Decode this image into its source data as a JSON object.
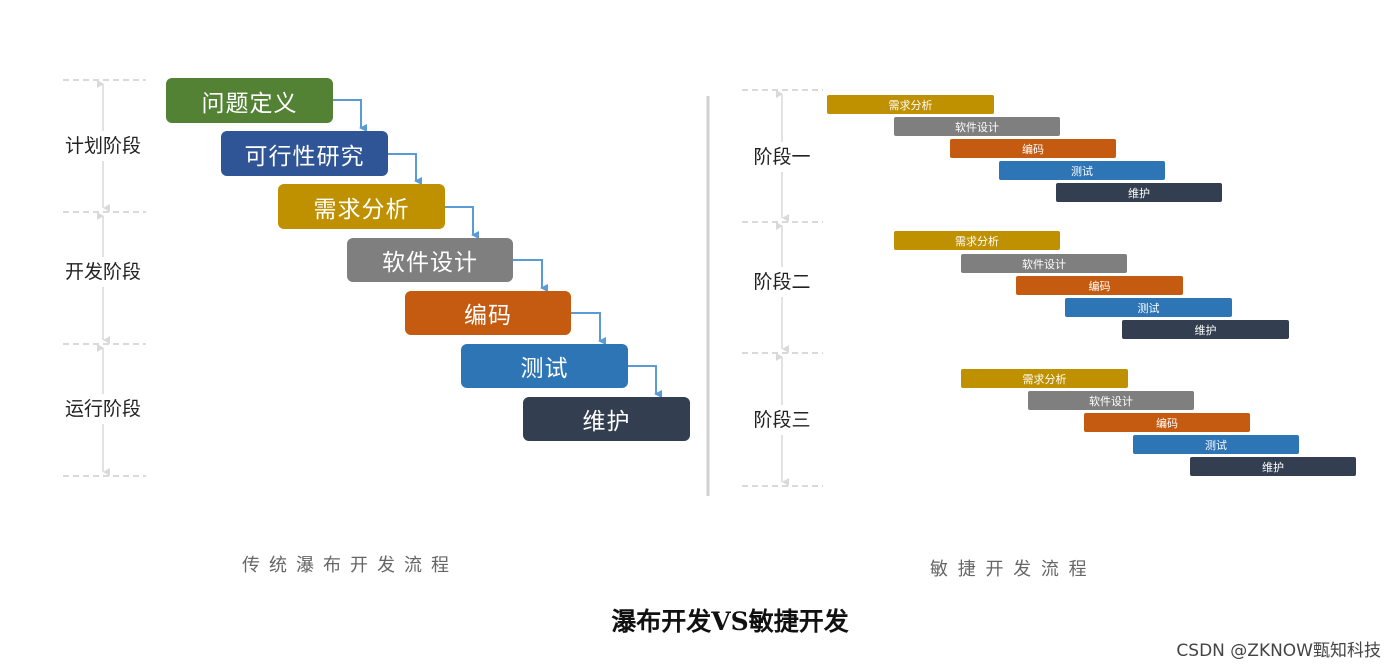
{
  "colors": {
    "green": "#548235",
    "navy": "#2f5597",
    "gold": "#bf9000",
    "gray": "#7f7f7f",
    "orange": "#c55a11",
    "blue": "#2e75b6",
    "dark": "#333f50",
    "arrow": "#5b9bd5",
    "guide": "#d9d9d9"
  },
  "waterfall": {
    "phases": [
      "计划阶段",
      "开发阶段",
      "运行阶段"
    ],
    "steps": [
      "问题定义",
      "可行性研究",
      "需求分析",
      "软件设计",
      "编码",
      "测试",
      "维护"
    ],
    "caption": "传统瀑布开发流程"
  },
  "agile": {
    "phases": [
      "阶段一",
      "阶段二",
      "阶段三"
    ],
    "steps": [
      "需求分析",
      "软件设计",
      "编码",
      "测试",
      "维护"
    ],
    "caption": "敏 捷 开 发 流 程"
  },
  "title": "瀑布开发VS敏捷开发",
  "watermark": "CSDN @ZKNOW甄知科技"
}
